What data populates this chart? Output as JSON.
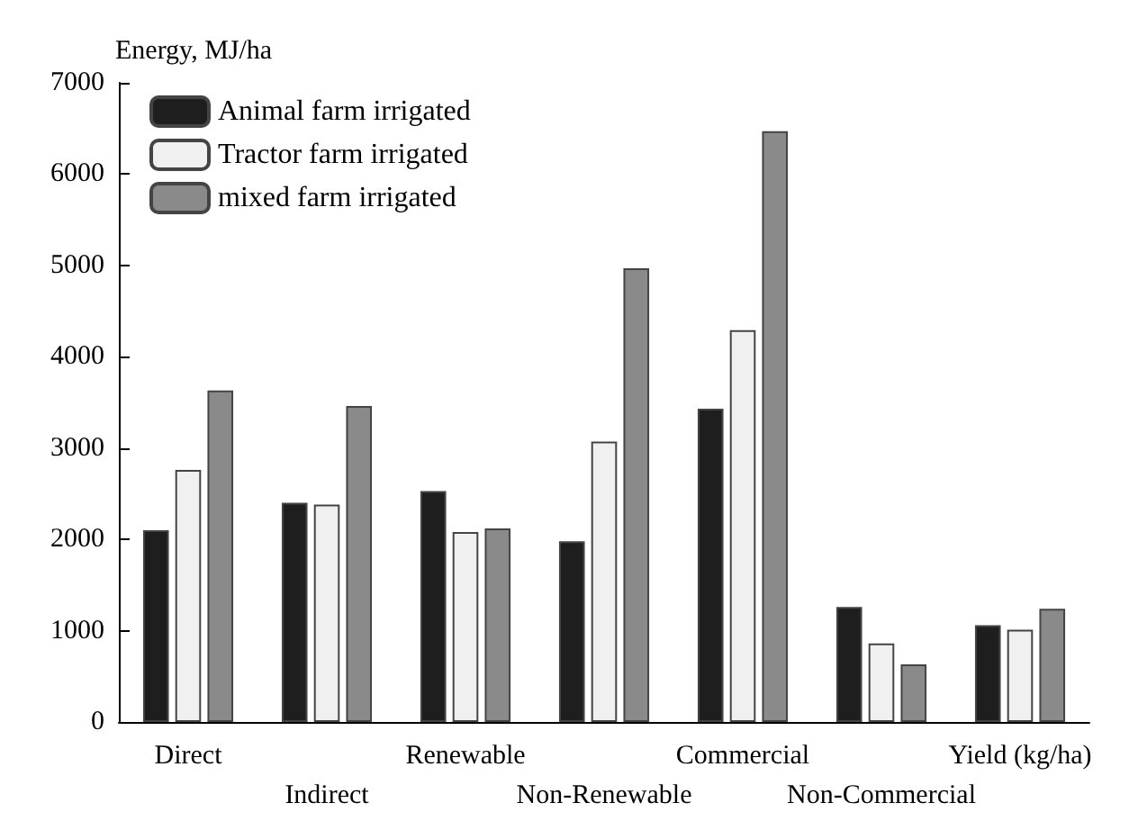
{
  "chart_data": {
    "type": "bar",
    "ylabel": "Energy, MJ/ha",
    "categories": [
      "Direct",
      "Indirect",
      "Renewable",
      "Non-Renewable",
      "Commercial",
      "Non-Commercial",
      "Yield (kg/ha)"
    ],
    "series": [
      {
        "name": "Animal farm irrigated",
        "color": "#1e1e1e",
        "values": [
          2100,
          2400,
          2530,
          1980,
          3430,
          1260,
          1060
        ]
      },
      {
        "name": "Tractor farm irrigated",
        "color": "#f0f0f0",
        "values": [
          2760,
          2380,
          2080,
          3070,
          4290,
          860,
          1010
        ]
      },
      {
        "name": "mixed farm irrigated",
        "color": "#8a8a8a",
        "values": [
          3630,
          3460,
          2120,
          4970,
          6470,
          630,
          1240
        ]
      }
    ],
    "ylim": [
      0,
      7000
    ],
    "yticks": [
      0,
      1000,
      2000,
      3000,
      4000,
      5000,
      6000,
      7000
    ],
    "grid": false,
    "legend": "top left"
  }
}
